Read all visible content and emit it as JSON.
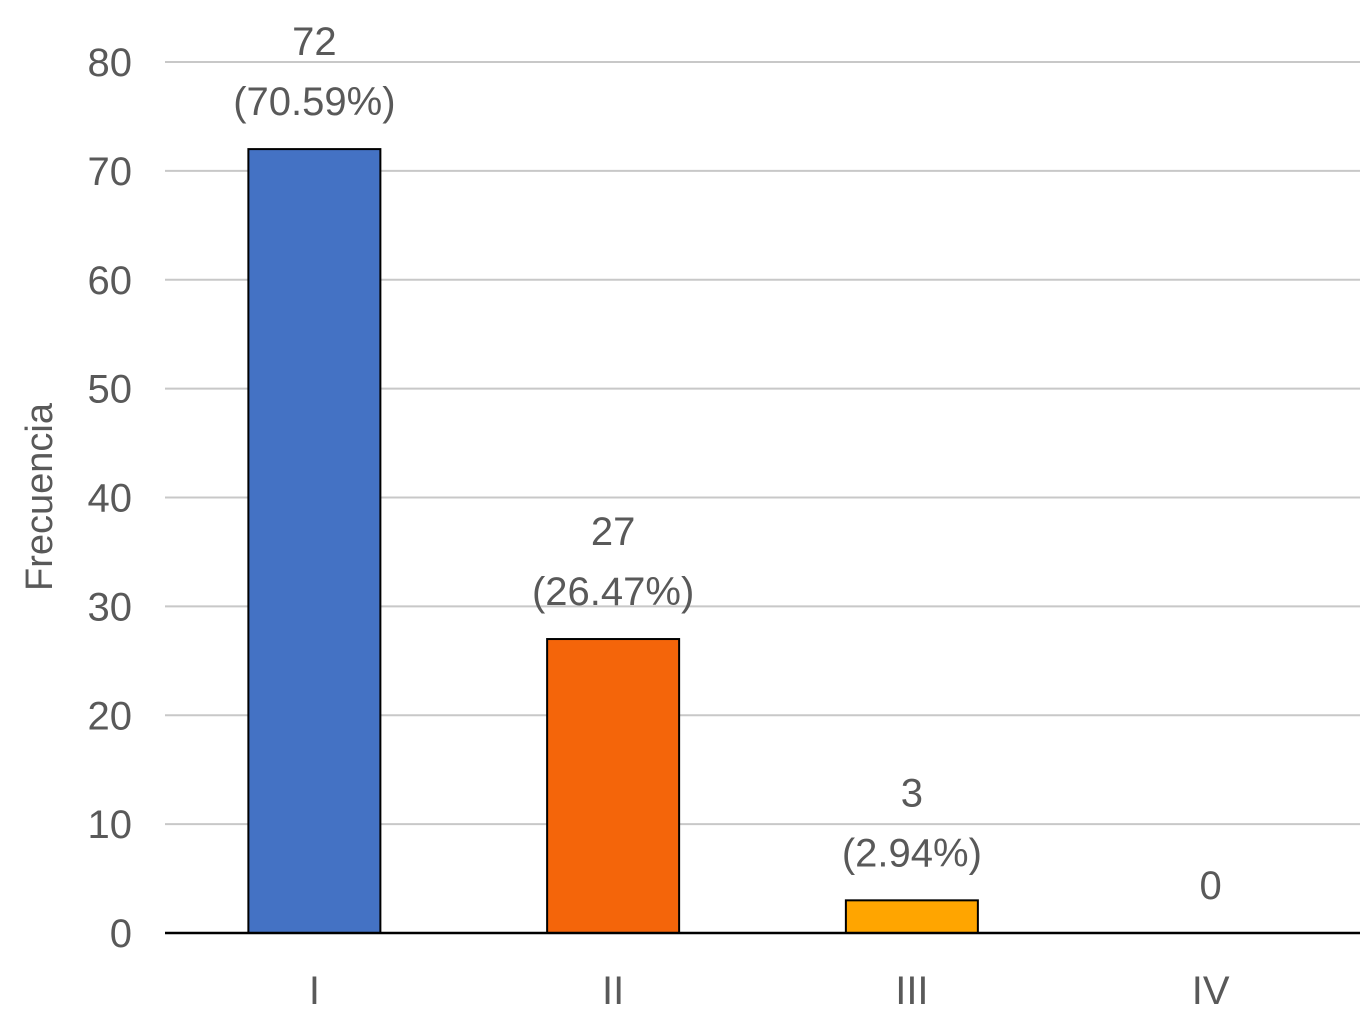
{
  "chart_data": {
    "type": "bar",
    "title": "",
    "xlabel": "",
    "ylabel": "Frecuencia",
    "ylim": [
      0,
      80
    ],
    "yticks": [
      0,
      10,
      20,
      30,
      40,
      50,
      60,
      70,
      80
    ],
    "grid": true,
    "legend": "none",
    "categories": [
      "I",
      "II",
      "III",
      "IV"
    ],
    "values": [
      72,
      27,
      3,
      0
    ],
    "data_labels": [
      [
        "72",
        "(70.59%)"
      ],
      [
        "27",
        "(26.47%)"
      ],
      [
        "3",
        "(2.94%)"
      ],
      [
        "0"
      ]
    ],
    "colors": [
      "#4472c4",
      "#f4650a",
      "#ffa500",
      "#a5a5a5"
    ],
    "gridline_color": "#c8c8c8",
    "axis_color": "#000000"
  }
}
